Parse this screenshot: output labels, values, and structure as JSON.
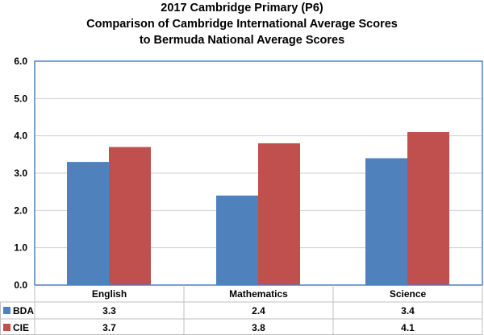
{
  "chart_data": {
    "type": "bar",
    "title": [
      "2017 Cambridge Primary (P6)",
      "Comparison of Cambridge International Average Scores",
      "to Bermuda National Average Scores"
    ],
    "categories": [
      "English",
      "Mathematics",
      "Science"
    ],
    "series": [
      {
        "name": "BDA",
        "values": [
          3.3,
          2.4,
          3.4
        ],
        "labels": [
          "3.3",
          "2.4",
          "3.4"
        ],
        "color": "#4f81bd"
      },
      {
        "name": "CIE",
        "values": [
          3.7,
          3.8,
          4.1
        ],
        "labels": [
          "3.7",
          "3.8",
          "4.1"
        ],
        "color": "#c0504d"
      }
    ],
    "ylim": [
      0,
      6
    ],
    "yticks": [
      "0.0",
      "1.0",
      "2.0",
      "3.0",
      "4.0",
      "5.0",
      "6.0"
    ],
    "grid": true,
    "legend": "data-table"
  }
}
